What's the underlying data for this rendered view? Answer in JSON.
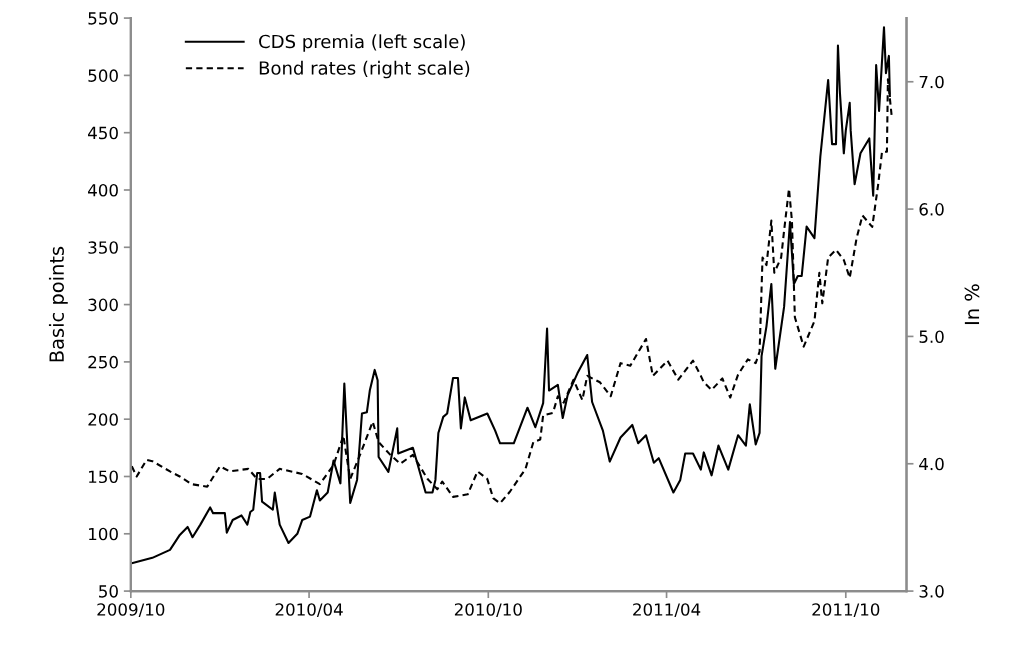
{
  "chart_data": {
    "type": "line",
    "ylabel": "Basic points",
    "y2label": "In %",
    "xlim": [
      "2009-10-01",
      "2011-12-02"
    ],
    "xticks": [
      {
        "value": "2009-10-01",
        "label": "2009/10"
      },
      {
        "value": "2010-04-01",
        "label": "2010/04"
      },
      {
        "value": "2010-10-01",
        "label": "2010/10"
      },
      {
        "value": "2011-04-01",
        "label": "2011/04"
      },
      {
        "value": "2011-10-01",
        "label": "2011/10"
      }
    ],
    "ylim": [
      50,
      550
    ],
    "yticks": [
      50,
      100,
      150,
      200,
      250,
      300,
      350,
      400,
      450,
      500,
      550
    ],
    "y2lim": [
      3.0,
      7.5
    ],
    "y2ticks": [
      {
        "value": 3,
        "label": "3.0"
      },
      {
        "value": 4,
        "label": "4.0"
      },
      {
        "value": 5,
        "label": "5.0"
      },
      {
        "value": 6,
        "label": "6.0"
      },
      {
        "value": 7,
        "label": "7.0"
      }
    ],
    "legend": "top left",
    "grid": false,
    "series": [
      {
        "name": "CDS premia (left scale)",
        "color": "#000000",
        "line_style": "solid",
        "x": [
          "2009-10-01",
          "2009-10-23",
          "2009-11-10",
          "2009-11-20",
          "2009-11-28",
          "2009-12-03",
          "2009-12-11",
          "2009-12-21",
          "2009-12-24",
          "2010-01-05",
          "2010-01-07",
          "2010-01-13",
          "2010-01-22",
          "2010-01-28",
          "2010-01-31",
          "2010-02-03",
          "2010-02-07",
          "2010-02-10",
          "2010-02-12",
          "2010-02-23",
          "2010-02-25",
          "2010-03-02",
          "2010-03-11",
          "2010-03-20",
          "2010-03-25",
          "2010-04-02",
          "2010-04-09",
          "2010-04-12",
          "2010-04-20",
          "2010-04-26",
          "2010-05-03",
          "2010-05-07",
          "2010-05-13",
          "2010-05-20",
          "2010-05-25",
          "2010-05-30",
          "2010-06-02",
          "2010-06-07",
          "2010-06-10",
          "2010-06-11",
          "2010-06-21",
          "2010-06-30",
          "2010-07-01",
          "2010-07-16",
          "2010-07-29",
          "2010-08-05",
          "2010-08-08",
          "2010-08-11",
          "2010-08-16",
          "2010-08-20",
          "2010-08-26",
          "2010-08-31",
          "2010-09-03",
          "2010-09-07",
          "2010-09-13",
          "2010-09-30",
          "2010-10-08",
          "2010-10-13",
          "2010-10-27",
          "2010-11-10",
          "2010-11-18",
          "2010-11-26",
          "2010-11-30",
          "2010-12-02",
          "2010-12-11",
          "2010-12-16",
          "2010-12-21",
          "2010-12-31",
          "2011-01-10",
          "2011-01-13",
          "2011-01-15",
          "2011-01-26",
          "2011-02-02",
          "2011-02-13",
          "2011-02-25",
          "2011-03-03",
          "2011-03-11",
          "2011-03-19",
          "2011-03-24",
          "2011-04-08",
          "2011-04-15",
          "2011-04-20",
          "2011-04-28",
          "2011-05-06",
          "2011-05-09",
          "2011-05-17",
          "2011-05-24",
          "2011-06-03",
          "2011-06-13",
          "2011-06-21",
          "2011-06-25",
          "2011-07-01",
          "2011-07-05",
          "2011-07-07",
          "2011-07-12",
          "2011-07-17",
          "2011-07-21",
          "2011-07-30",
          "2011-08-05",
          "2011-08-09",
          "2011-08-13",
          "2011-08-17",
          "2011-08-22",
          "2011-08-30",
          "2011-09-05",
          "2011-09-13",
          "2011-09-17",
          "2011-09-21",
          "2011-09-23",
          "2011-09-25",
          "2011-09-29",
          "2011-10-01",
          "2011-10-05",
          "2011-10-06",
          "2011-10-10",
          "2011-10-16",
          "2011-10-25",
          "2011-10-29",
          "2011-11-01",
          "2011-11-04",
          "2011-11-09",
          "2011-11-11",
          "2011-11-14",
          "2011-11-15"
        ],
        "values": [
          74,
          79,
          86,
          99,
          106,
          97,
          108,
          123,
          118,
          118,
          101,
          112,
          116,
          108,
          119,
          121,
          153,
          153,
          128,
          121,
          136,
          108,
          92,
          100,
          112,
          115,
          138,
          129,
          136,
          164,
          144,
          231,
          127,
          147,
          205,
          206,
          225,
          243,
          234,
          167,
          154,
          192,
          170,
          175,
          136,
          136,
          147,
          188,
          202,
          205,
          236,
          236,
          192,
          219,
          199,
          205,
          190,
          179,
          179,
          210,
          193,
          214,
          279,
          225,
          230,
          201,
          221,
          240,
          256,
          231,
          215,
          190,
          163,
          184,
          195,
          179,
          186,
          162,
          166,
          136,
          147,
          170,
          170,
          156,
          171,
          151,
          177,
          156,
          186,
          177,
          213,
          178,
          188,
          255,
          281,
          318,
          244,
          298,
          372,
          318,
          325,
          325,
          368,
          358,
          429,
          496,
          440,
          440,
          526,
          485,
          432,
          452,
          476,
          452,
          405,
          432,
          445,
          395,
          509,
          469,
          542,
          502,
          517,
          482
        ]
      },
      {
        "name": "Bond rates (right scale)",
        "color": "#000000",
        "line_style": "dashed",
        "axis": "y2",
        "x": [
          "2009-10-02",
          "2009-10-07",
          "2009-10-17",
          "2009-10-23",
          "2009-11-10",
          "2009-11-20",
          "2009-12-02",
          "2009-12-18",
          "2009-12-31",
          "2010-01-10",
          "2010-01-29",
          "2010-02-07",
          "2010-02-17",
          "2010-03-02",
          "2010-03-25",
          "2010-04-12",
          "2010-04-26",
          "2010-05-06",
          "2010-05-13",
          "2010-05-23",
          "2010-06-05",
          "2010-06-11",
          "2010-06-23",
          "2010-07-03",
          "2010-07-16",
          "2010-07-31",
          "2010-08-10",
          "2010-08-15",
          "2010-08-26",
          "2010-09-10",
          "2010-09-20",
          "2010-09-30",
          "2010-10-06",
          "2010-10-13",
          "2010-10-23",
          "2010-11-08",
          "2010-11-16",
          "2010-11-23",
          "2010-11-26",
          "2010-12-06",
          "2010-12-11",
          "2010-12-17",
          "2010-12-27",
          "2011-01-05",
          "2011-01-10",
          "2011-01-23",
          "2011-02-03",
          "2011-02-13",
          "2011-02-23",
          "2011-03-11",
          "2011-03-18",
          "2011-04-02",
          "2011-04-13",
          "2011-04-28",
          "2011-05-06",
          "2011-05-09",
          "2011-05-17",
          "2011-05-28",
          "2011-06-05",
          "2011-06-13",
          "2011-06-23",
          "2011-07-01",
          "2011-07-05",
          "2011-07-08",
          "2011-07-12",
          "2011-07-17",
          "2011-07-20",
          "2011-07-27",
          "2011-07-30",
          "2011-08-04",
          "2011-08-07",
          "2011-08-10",
          "2011-08-19",
          "2011-08-30",
          "2011-09-04",
          "2011-09-07",
          "2011-09-13",
          "2011-09-21",
          "2011-09-29",
          "2011-10-05",
          "2011-10-12",
          "2011-10-18",
          "2011-10-28",
          "2011-11-03",
          "2011-11-07",
          "2011-11-12",
          "2011-11-13",
          "2011-11-17"
        ],
        "values": [
          3.98,
          3.9,
          4.03,
          4.02,
          3.94,
          3.9,
          3.84,
          3.82,
          3.98,
          3.94,
          3.96,
          3.88,
          3.88,
          3.96,
          3.92,
          3.84,
          3.99,
          4.22,
          3.88,
          4.07,
          4.33,
          4.17,
          4.07,
          4.0,
          4.07,
          3.88,
          3.8,
          3.86,
          3.74,
          3.76,
          3.94,
          3.88,
          3.73,
          3.69,
          3.78,
          3.96,
          4.17,
          4.19,
          4.38,
          4.4,
          4.53,
          4.48,
          4.66,
          4.5,
          4.69,
          4.64,
          4.53,
          4.79,
          4.77,
          4.98,
          4.69,
          4.81,
          4.66,
          4.81,
          4.69,
          4.64,
          4.58,
          4.67,
          4.52,
          4.7,
          4.82,
          4.79,
          4.88,
          5.62,
          5.56,
          5.91,
          5.5,
          5.62,
          5.83,
          6.16,
          5.91,
          5.15,
          4.92,
          5.12,
          5.5,
          5.26,
          5.62,
          5.68,
          5.6,
          5.46,
          5.77,
          5.95,
          5.86,
          6.19,
          6.45,
          6.45,
          7.02,
          6.72
        ]
      }
    ]
  }
}
